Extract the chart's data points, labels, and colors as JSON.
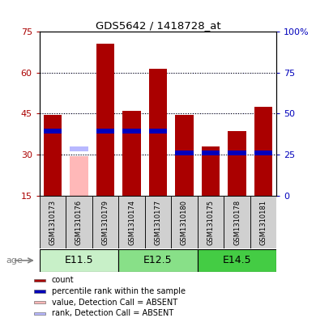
{
  "title": "GDS5642 / 1418728_at",
  "samples": [
    "GSM1310173",
    "GSM1310176",
    "GSM1310179",
    "GSM1310174",
    "GSM1310177",
    "GSM1310180",
    "GSM1310175",
    "GSM1310178",
    "GSM1310181"
  ],
  "count_values": [
    44.5,
    null,
    70.5,
    46.0,
    61.5,
    44.5,
    33.0,
    38.5,
    47.5
  ],
  "absent_count_values": [
    null,
    29.5,
    null,
    null,
    null,
    null,
    null,
    null,
    null
  ],
  "rank_values": [
    38.5,
    null,
    38.5,
    38.5,
    38.5,
    30.5,
    30.5,
    30.5,
    30.5
  ],
  "absent_rank_values": [
    null,
    32.0,
    null,
    null,
    null,
    null,
    null,
    null,
    null
  ],
  "bar_bottom": 15.0,
  "ylim": [
    15,
    75
  ],
  "yticks": [
    15,
    30,
    45,
    60,
    75
  ],
  "yticklabels": [
    "15",
    "30",
    "45",
    "60",
    "75"
  ],
  "y2ticks_pct": [
    0,
    25,
    50,
    75,
    100
  ],
  "y2ticklabels": [
    "0",
    "25",
    "50",
    "75",
    "100%"
  ],
  "groups": [
    {
      "label": "E11.5",
      "start": 0,
      "end": 3,
      "color": "#c8f0c8"
    },
    {
      "label": "E12.5",
      "start": 3,
      "end": 6,
      "color": "#88e088"
    },
    {
      "label": "E14.5",
      "start": 6,
      "end": 9,
      "color": "#44cc44"
    }
  ],
  "count_color": "#aa0000",
  "absent_count_color": "#ffb8b8",
  "rank_color": "#0000bb",
  "absent_rank_color": "#b8b8ff",
  "bar_width": 0.7,
  "rank_bar_height": 1.8,
  "legend_items": [
    {
      "label": "count",
      "color": "#aa0000"
    },
    {
      "label": "percentile rank within the sample",
      "color": "#0000bb"
    },
    {
      "label": "value, Detection Call = ABSENT",
      "color": "#ffb8b8"
    },
    {
      "label": "rank, Detection Call = ABSENT",
      "color": "#b8b8ff"
    }
  ]
}
